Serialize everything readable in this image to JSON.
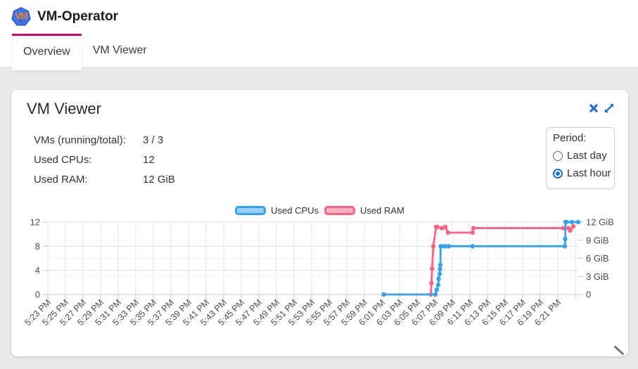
{
  "header": {
    "title": "VM-Operator",
    "logo_text": "VM"
  },
  "tabs": [
    {
      "label": "Overview",
      "active": true
    },
    {
      "label": "VM Viewer",
      "active": false
    }
  ],
  "card": {
    "title": "VM Viewer",
    "stats": [
      {
        "label": "VMs (running/total):",
        "value": "3 / 3"
      },
      {
        "label": "Used CPUs:",
        "value": "12"
      },
      {
        "label": "Used RAM:",
        "value": "12 GiB"
      }
    ],
    "period": {
      "label": "Period:",
      "options": [
        {
          "label": "Last day",
          "selected": false
        },
        {
          "label": "Last hour",
          "selected": true
        }
      ]
    }
  },
  "chart_data": {
    "type": "line",
    "legend": [
      {
        "label": "Used CPUs",
        "color": "#36a2eb",
        "fill": "#9ad0f5"
      },
      {
        "label": "Used RAM",
        "color": "#ff6384",
        "fill": "#ffb1c1"
      }
    ],
    "x_axis": {
      "unit": "minutes after 5:23 PM",
      "range": [
        0,
        60
      ],
      "tick_step_minutes": 2,
      "labels": [
        "5:23 PM",
        "5:25 PM",
        "5:27 PM",
        "5:29 PM",
        "5:31 PM",
        "5:33 PM",
        "5:35 PM",
        "5:37 PM",
        "5:39 PM",
        "5:41 PM",
        "5:43 PM",
        "5:45 PM",
        "5:47 PM",
        "5:49 PM",
        "5:51 PM",
        "5:53 PM",
        "5:55 PM",
        "5:57 PM",
        "5:59 PM",
        "6:01 PM",
        "6:03 PM",
        "6:05 PM",
        "6:07 PM",
        "6:09 PM",
        "6:11 PM",
        "6:13 PM",
        "6:15 PM",
        "6:17 PM",
        "6:19 PM",
        "6:21 PM"
      ]
    },
    "y_left": {
      "ticks": [
        0,
        4,
        8,
        12
      ],
      "range": [
        0,
        12
      ]
    },
    "y_right": {
      "ticks": [
        "0",
        "3 GiB",
        "6 GiB",
        "9 GiB",
        "12 GiB"
      ],
      "range_gib": [
        0,
        12
      ]
    },
    "series": [
      {
        "name": "Used RAM",
        "axis": "right",
        "color": "#ff6384",
        "points": [
          [
            38.2,
            0
          ],
          [
            43.56,
            0
          ],
          [
            43.64,
            1.9
          ],
          [
            43.7,
            4.3
          ],
          [
            43.84,
            8
          ],
          [
            44.16,
            11.2
          ],
          [
            44.3,
            11.2
          ],
          [
            44.8,
            11.0
          ],
          [
            45.2,
            11.2
          ],
          [
            45.5,
            10.25
          ],
          [
            48.3,
            10.25
          ],
          [
            48.4,
            11.0
          ],
          [
            58.6,
            11.0
          ],
          [
            59.2,
            11.0
          ],
          [
            59.4,
            10.6
          ],
          [
            59.76,
            11.3
          ]
        ]
      },
      {
        "name": "Used CPUs",
        "axis": "left",
        "color": "#36a2eb",
        "points": [
          [
            38.2,
            0
          ],
          [
            44.08,
            0
          ],
          [
            44.24,
            0.8
          ],
          [
            44.4,
            1.6
          ],
          [
            44.44,
            2.6
          ],
          [
            44.56,
            3.4
          ],
          [
            44.6,
            4.2
          ],
          [
            44.64,
            4.9
          ],
          [
            44.68,
            8
          ],
          [
            44.8,
            8
          ],
          [
            45.2,
            8
          ],
          [
            45.6,
            8
          ],
          [
            48.3,
            8
          ],
          [
            58.8,
            8
          ],
          [
            58.84,
            9.2
          ],
          [
            58.88,
            12
          ],
          [
            59.0,
            12
          ],
          [
            59.6,
            12
          ],
          [
            60.32,
            12
          ]
        ]
      }
    ]
  }
}
